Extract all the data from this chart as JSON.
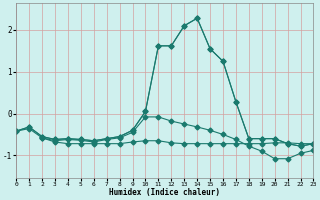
{
  "xlabel": "Humidex (Indice chaleur)",
  "background_color": "#cff0ee",
  "grid_color": "#d4a0a0",
  "line_color": "#1a7a6e",
  "markersize": 2.5,
  "linewidth": 0.8,
  "series": [
    {
      "x": [
        0,
        1,
        2,
        3,
        4,
        5,
        6,
        7,
        8,
        9,
        10,
        11,
        12,
        13,
        14,
        15,
        16,
        17,
        18,
        19,
        20,
        21,
        22,
        23
      ],
      "y": [
        -0.42,
        -0.32,
        -0.55,
        -0.62,
        -0.6,
        -0.62,
        -0.65,
        -0.6,
        -0.55,
        -0.4,
        0.05,
        1.62,
        1.62,
        2.1,
        2.28,
        1.55,
        1.25,
        0.28,
        -0.6,
        -0.6,
        -0.6,
        -0.72,
        -0.78,
        -0.72
      ]
    },
    {
      "x": [
        0,
        1,
        2,
        3,
        4,
        5,
        6,
        7,
        8,
        9,
        10,
        11,
        12,
        13,
        14,
        15,
        16,
        17,
        18,
        19,
        20,
        21,
        22,
        23
      ],
      "y": [
        -0.42,
        -0.32,
        -0.55,
        -0.62,
        -0.6,
        -0.62,
        -0.65,
        -0.6,
        -0.55,
        -0.4,
        0.05,
        1.62,
        1.62,
        2.1,
        2.28,
        1.55,
        1.25,
        0.28,
        -0.6,
        -0.6,
        -0.6,
        -0.72,
        -0.78,
        -0.72
      ]
    },
    {
      "x": [
        0,
        1,
        2,
        3,
        4,
        5,
        6,
        7,
        8,
        9,
        10,
        11,
        12,
        13,
        14,
        15,
        16,
        17,
        18,
        19,
        20,
        21,
        22,
        23
      ],
      "y": [
        -0.42,
        -0.36,
        -0.58,
        -0.65,
        -0.62,
        -0.64,
        -0.68,
        -0.62,
        -0.58,
        -0.45,
        -0.08,
        -0.08,
        -0.18,
        -0.25,
        -0.32,
        -0.4,
        -0.5,
        -0.62,
        -0.78,
        -0.9,
        -1.08,
        -1.08,
        -0.95,
        -0.88
      ]
    },
    {
      "x": [
        2,
        3,
        4,
        5,
        6,
        7,
        8,
        9,
        10,
        11,
        12,
        13,
        14,
        15,
        16,
        17,
        18,
        19,
        20,
        21,
        22,
        23
      ],
      "y": [
        -0.58,
        -0.68,
        -0.72,
        -0.72,
        -0.72,
        -0.72,
        -0.72,
        -0.68,
        -0.65,
        -0.65,
        -0.7,
        -0.72,
        -0.72,
        -0.72,
        -0.72,
        -0.72,
        -0.72,
        -0.72,
        -0.7,
        -0.7,
        -0.72,
        -0.72
      ]
    }
  ],
  "xlim": [
    0,
    23
  ],
  "ylim": [
    -1.55,
    2.65
  ],
  "yticks": [
    -1,
    0,
    1,
    2
  ],
  "xticks": [
    0,
    1,
    2,
    3,
    4,
    5,
    6,
    7,
    8,
    9,
    10,
    11,
    12,
    13,
    14,
    15,
    16,
    17,
    18,
    19,
    20,
    21,
    22,
    23
  ]
}
